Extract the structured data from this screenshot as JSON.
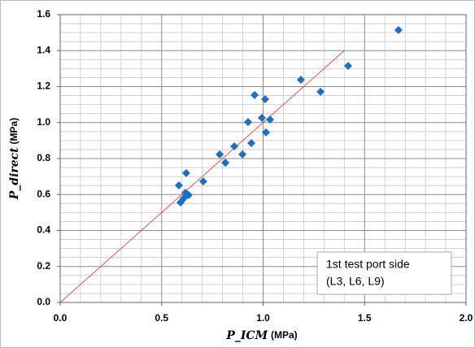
{
  "chart_data": {
    "type": "scatter",
    "x_label": "P_ICM",
    "x_unit": "(MPa)",
    "y_label": "P_direct",
    "y_unit": "(MPa)",
    "annotation": [
      "1st test port side",
      "(L3, L6, L9)"
    ],
    "xlim": [
      0,
      2
    ],
    "ylim": [
      0,
      1.6
    ],
    "xticks": [
      {
        "value": 0,
        "label": "0.0"
      },
      0.5,
      {
        "value": 1,
        "label": "1.0"
      },
      1.5,
      {
        "value": 2,
        "label": "2.0"
      }
    ],
    "yticks": [
      {
        "value": 0,
        "label": "0.0"
      },
      0.2,
      0.4,
      0.6,
      0.8,
      {
        "value": 1,
        "label": "1.0"
      },
      1.2,
      1.4,
      1.6
    ],
    "grid": true,
    "series": [
      {
        "color": "#1f6fbf",
        "x": [
          1.667,
          1.419,
          1.186,
          1.283,
          0.958,
          1.01,
          0.994,
          0.926,
          1.034,
          1.014,
          0.858,
          0.942,
          0.786,
          0.898,
          0.814,
          0.705,
          0.621,
          0.585,
          0.617,
          0.633,
          0.593,
          0.609
        ],
        "values": [
          1.514,
          1.315,
          1.238,
          1.171,
          1.153,
          1.13,
          1.026,
          1.003,
          1.017,
          0.945,
          0.868,
          0.886,
          0.823,
          0.823,
          0.777,
          0.673,
          0.719,
          0.651,
          0.61,
          0.597,
          0.556,
          0.579
        ]
      }
    ],
    "fit_line": {
      "x": [
        0,
        1.4
      ],
      "y": [
        0,
        1.4
      ],
      "color": "#e8504a"
    }
  }
}
